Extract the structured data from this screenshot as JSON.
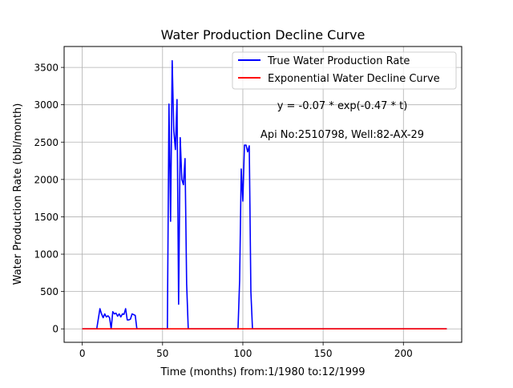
{
  "chart_data": {
    "type": "line",
    "title": "Water Production Decline Curve",
    "xlabel": "Time (months) from:1/1980 to:12/1999",
    "ylabel": "Water Production Rate (bbl/month)",
    "xlim": [
      -11.3,
      236.3
    ],
    "ylim": [
      -180,
      3780
    ],
    "xticks": [
      0,
      50,
      100,
      150,
      200
    ],
    "yticks": [
      0,
      500,
      1000,
      1500,
      2000,
      2500,
      3000,
      3500
    ],
    "grid": true,
    "legend_position": "upper right",
    "annotations": [
      "y = -0.07 * exp(-0.47 * t)",
      "Api No:2510798, Well:82-AX-29"
    ],
    "series": [
      {
        "name": "True Water Production Rate",
        "color": "#0000ff",
        "x": [
          0,
          9,
          11,
          12,
          13,
          14,
          15,
          16,
          17,
          18,
          19,
          20,
          21,
          22,
          23,
          24,
          25,
          26,
          27,
          28,
          29,
          30,
          31,
          32,
          33,
          34,
          35,
          36,
          53,
          54,
          55,
          56,
          57,
          58,
          59,
          60,
          61,
          62,
          63,
          64,
          65,
          66,
          67,
          97,
          98,
          99,
          100,
          101,
          102,
          103,
          104,
          105,
          106,
          107,
          227
        ],
        "y": [
          0,
          0,
          270,
          200,
          150,
          200,
          160,
          175,
          150,
          0,
          230,
          200,
          210,
          170,
          200,
          160,
          200,
          195,
          270,
          120,
          120,
          130,
          200,
          190,
          180,
          0,
          0,
          0,
          0,
          3010,
          1440,
          3590,
          2650,
          2400,
          3070,
          330,
          2560,
          2000,
          1930,
          2280,
          600,
          0,
          0,
          0,
          650,
          2140,
          1710,
          2460,
          2460,
          2370,
          2450,
          500,
          0,
          0,
          0
        ]
      },
      {
        "name": "Exponential Water Decline Curve",
        "color": "#ff0000",
        "x": [
          0,
          227
        ],
        "y": [
          0,
          0
        ]
      }
    ]
  }
}
